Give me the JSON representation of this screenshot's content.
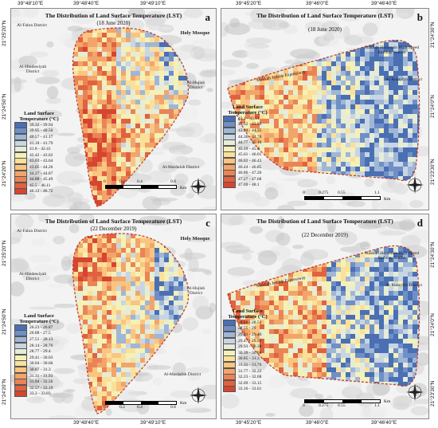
{
  "panels": {
    "a": {
      "title": "The Distribution of Land Surface Temperature (LST)",
      "date": "(18 June 2020)",
      "letter": "a",
      "places": [
        "Al-Fahra District",
        "Holy Mosque",
        "Al-Hindawiyah District",
        "Al-Hujlah District",
        "Al-Mardafah District"
      ],
      "legend_title": "Land Surface Temperature (°C)",
      "classes": [
        "39.32 - 39.94",
        "39.95 - 40.56",
        "40.57 - 41.17",
        "41.18 - 41.79",
        "41.8 - 42.41",
        "42.42 - 43.02",
        "43.03 - 43.64",
        "43.65 - 44.26",
        "44.27 - 44.87",
        "44.88 - 45.49",
        "45.5 - 46.11",
        "46.12 - 46.72"
      ],
      "scale": [
        "0",
        "0.2",
        "0.4",
        "0.8",
        "Km"
      ]
    },
    "b": {
      "title": "The Distribution of Land Surface Temperature (LST)",
      "date": "(18 June 2020)",
      "letter": "b",
      "places": [
        "Makkah Haramain High Speed Railway Station",
        "Al-Rusayfah District",
        "Makkah Jeddah Expressway"
      ],
      "legend_title": "Land Surface Temperature (°C)",
      "classes": [
        "43.1 - 43.51",
        "43.52 - 43.93",
        "43.94 - 44.35",
        "44.36 - 44.76",
        "44.77 - 45.18",
        "45.19 - 45.6",
        "45.61 - 46.01",
        "46.02 - 46.43",
        "46.44 - 46.85",
        "46.86 - 47.26",
        "47.27 - 47.68",
        "47.69 - 48.1"
      ],
      "scale": [
        "0",
        "0.275",
        "0.55",
        "1.1",
        "Km"
      ]
    },
    "c": {
      "title": "The Distribution of Land Surface Temperature (LST)",
      "date": "(22 December 2019)",
      "letter": "c",
      "places": [
        "Al-Fahra District",
        "Holy Mosque",
        "Al-Hindawiyah District",
        "Al-Hujlah District",
        "Al-Mardafah District"
      ],
      "legend_title": "Land Surface Temperature (°C)",
      "classes": [
        "26.23 - 26.87",
        "26.88 - 27.5",
        "27.51 - 28.13",
        "28.14 - 28.76",
        "28.77 - 29.4",
        "29.41 - 30.03",
        "30.04 - 30.66",
        "30.67 - 31.3",
        "31.31 - 31.93",
        "31.94 - 32.56",
        "32.57 - 33.19",
        "33.2 - 33.83"
      ],
      "scale": [
        "0",
        "0.2",
        "0.4",
        "0.8",
        "Km"
      ]
    },
    "d": {
      "title": "The Distribution of Land Surface Temperature (LST)",
      "date": "(22 December 2019)",
      "letter": "d",
      "places": [
        "Makkah Haramain High Speed Railway Station",
        "Al-Rusayfah District",
        "Makkah Jeddah Expressway"
      ],
      "legend_title": "Land Surface Temperature (°C)",
      "classes": [
        "28.08 - 28.54",
        "28.55 - 29",
        "29.01 - 29.46",
        "29.47 - 29.92",
        "29.93 - 30.38",
        "30.39 - 30.84",
        "30.85 - 31.3",
        "31.31 - 31.76",
        "31.77 - 32.22",
        "32.23 - 32.68",
        "32.69 - 33.15",
        "33.16 - 33.61"
      ],
      "scale": [
        "0",
        "0.275",
        "0.55",
        "1.1",
        "Km"
      ]
    }
  },
  "ramp": [
    "#4a6fb3",
    "#6f8fc6",
    "#9fb6d6",
    "#c8d6e3",
    "#e6ecd6",
    "#f4f1b8",
    "#fbe09a",
    "#f9c581",
    "#f2a56a",
    "#ea8456",
    "#e1623f",
    "#d6452f"
  ],
  "axes": {
    "left_top": [
      "39°48'10\"E",
      "39°48'40\"E",
      "39°49'10\"E"
    ],
    "left_bottom": [
      "39°48'40\"E",
      "39°49'10\"E"
    ],
    "right_top": [
      "39°45'20\"E",
      "39°46'0\"E",
      "39°46'40\"E"
    ],
    "right_bottom": [
      "39°45'20\"E",
      "39°46'0\"E",
      "39°46'40\"E"
    ],
    "lat_a": [
      "21°25'20\"N",
      "21°24'50\"N",
      "21°24'20\"N"
    ],
    "lat_b": [
      "21°24'30\"N",
      "21°24'0\"N",
      "21°23'30\"N"
    ],
    "lat_c": [
      "21°25'20\"N",
      "21°24'50\"N",
      "21°24'20\"N"
    ],
    "lat_d": [
      "21°24'30\"N",
      "21°24'0\"N",
      "21°23'30\"N"
    ]
  }
}
